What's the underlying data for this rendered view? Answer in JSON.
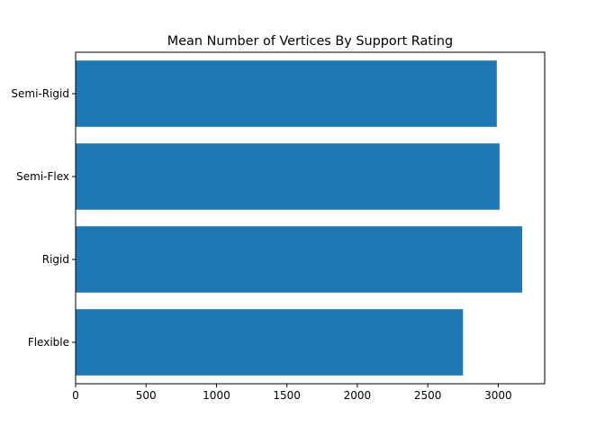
{
  "chart_data": {
    "type": "bar",
    "orientation": "horizontal",
    "title": "Mean Number of Vertices By Support Rating",
    "categories": [
      "Flexible",
      "Rigid",
      "Semi-Flex",
      "Semi-Rigid"
    ],
    "values": [
      2750,
      3170,
      3010,
      2990
    ],
    "xlim": [
      0,
      3330
    ],
    "xticks": [
      0,
      500,
      1000,
      1500,
      2000,
      2500,
      3000
    ],
    "xtick_labels": [
      "0",
      "500",
      "1000",
      "1500",
      "2000",
      "2500",
      "3000"
    ],
    "xlabel": "",
    "ylabel": "",
    "grid": false,
    "bar_color": "#1f77b4"
  }
}
